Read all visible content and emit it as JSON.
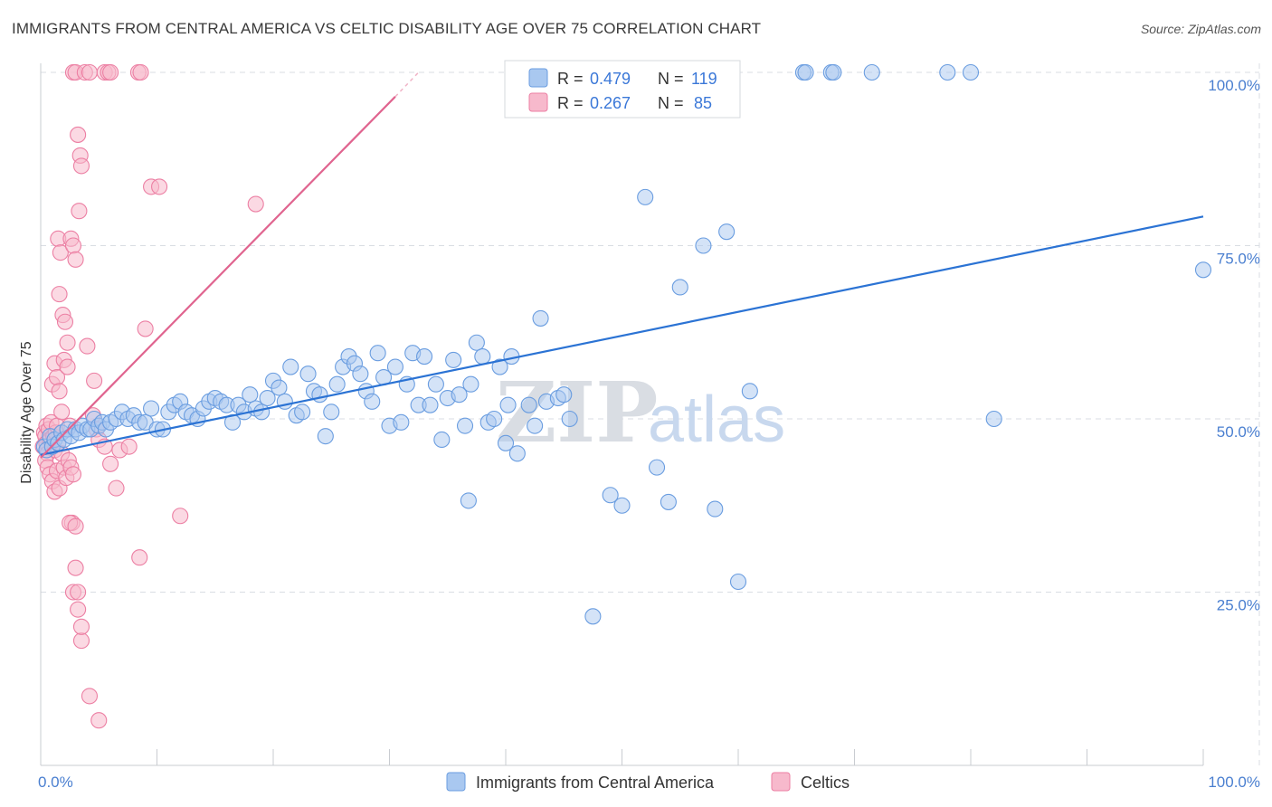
{
  "title": "IMMIGRANTS FROM CENTRAL AMERICA VS CELTIC DISABILITY AGE OVER 75 CORRELATION CHART",
  "source": "Source: ZipAtlas.com",
  "watermark": {
    "zip": "ZIP",
    "atlas": "atlas"
  },
  "colors": {
    "blue_fill": "#a9c8f0",
    "blue_stroke": "#6a9de0",
    "blue_line": "#2b73d4",
    "pink_fill": "#f7b9cc",
    "pink_stroke": "#ec7fa3",
    "pink_line": "#e0648f",
    "grid": "#d9dde3",
    "tick_text": "#4a7fd0"
  },
  "legend": {
    "blue": {
      "r_label": "R = ",
      "r_value": "0.479",
      "n_label": "N = ",
      "n_value": "119"
    },
    "pink": {
      "r_label": "R = ",
      "r_value": "0.267",
      "n_label": "N = ",
      "n_value": "85"
    }
  },
  "chart_data": {
    "type": "scatter",
    "title": "IMMIGRANTS FROM CENTRAL AMERICA VS CELTIC DISABILITY AGE OVER 75 CORRELATION CHART",
    "xlabel": "",
    "ylabel": "Disability Age Over 75",
    "xlim": [
      0,
      100
    ],
    "ylim": [
      0,
      103
    ],
    "x_tick_labels": [
      "0.0%",
      "100.0%"
    ],
    "y_ticks": [
      25,
      50,
      75,
      100
    ],
    "y_tick_labels": [
      "25.0%",
      "50.0%",
      "75.0%",
      "100.0%"
    ],
    "grid": true,
    "legend_position": "top-center",
    "series": [
      {
        "name": "Immigrants from Central America",
        "color": "#6a9de0",
        "trend": {
          "x": [
            0,
            100
          ],
          "y": [
            44.8,
            79.2
          ]
        },
        "points": [
          [
            0.3,
            46
          ],
          [
            0.5,
            45.5
          ],
          [
            0.8,
            47.5
          ],
          [
            1.0,
            46
          ],
          [
            1.2,
            47
          ],
          [
            1.5,
            46.5
          ],
          [
            1.8,
            48
          ],
          [
            2.0,
            47
          ],
          [
            2.3,
            48.5
          ],
          [
            2.6,
            47.5
          ],
          [
            3.0,
            48.5
          ],
          [
            3.3,
            48
          ],
          [
            3.6,
            49
          ],
          [
            4.0,
            48.5
          ],
          [
            4.3,
            48.5
          ],
          [
            4.6,
            50
          ],
          [
            5.0,
            49
          ],
          [
            5.3,
            49.5
          ],
          [
            5.6,
            48.5
          ],
          [
            6.0,
            49.5
          ],
          [
            6.5,
            50
          ],
          [
            7.0,
            51
          ],
          [
            7.5,
            50
          ],
          [
            8.0,
            50.5
          ],
          [
            8.5,
            49.5
          ],
          [
            9.0,
            49.5
          ],
          [
            9.5,
            51.5
          ],
          [
            10.0,
            48.5
          ],
          [
            10.5,
            48.5
          ],
          [
            11.0,
            51
          ],
          [
            11.5,
            52
          ],
          [
            12.0,
            52.5
          ],
          [
            12.5,
            51
          ],
          [
            13.0,
            50.5
          ],
          [
            13.5,
            50
          ],
          [
            14.0,
            51.5
          ],
          [
            14.5,
            52.5
          ],
          [
            15.0,
            53
          ],
          [
            15.5,
            52.5
          ],
          [
            16.0,
            52
          ],
          [
            16.5,
            49.5
          ],
          [
            17.0,
            52
          ],
          [
            17.5,
            51
          ],
          [
            18.0,
            53.5
          ],
          [
            18.5,
            51.5
          ],
          [
            19.0,
            51
          ],
          [
            19.5,
            53
          ],
          [
            20.0,
            55.5
          ],
          [
            20.5,
            54.5
          ],
          [
            21.0,
            52.5
          ],
          [
            21.5,
            57.5
          ],
          [
            22.0,
            50.5
          ],
          [
            22.5,
            51
          ],
          [
            23.0,
            56.5
          ],
          [
            23.5,
            54
          ],
          [
            24.0,
            53.5
          ],
          [
            24.5,
            47.5
          ],
          [
            25.0,
            51
          ],
          [
            25.5,
            55
          ],
          [
            26.0,
            57.5
          ],
          [
            26.5,
            59
          ],
          [
            27.0,
            58
          ],
          [
            27.5,
            56.5
          ],
          [
            28.0,
            54
          ],
          [
            28.5,
            52.5
          ],
          [
            29.0,
            59.5
          ],
          [
            29.5,
            56
          ],
          [
            30.0,
            49
          ],
          [
            30.5,
            57.5
          ],
          [
            31.0,
            49.5
          ],
          [
            31.5,
            55
          ],
          [
            32.0,
            59.5
          ],
          [
            32.5,
            52
          ],
          [
            33.0,
            59
          ],
          [
            33.5,
            52
          ],
          [
            34.0,
            55
          ],
          [
            34.5,
            47
          ],
          [
            35.0,
            53
          ],
          [
            35.5,
            58.5
          ],
          [
            36.0,
            53.5
          ],
          [
            36.5,
            49
          ],
          [
            37.0,
            55
          ],
          [
            37.5,
            61
          ],
          [
            38.0,
            59
          ],
          [
            38.5,
            49.5
          ],
          [
            39.0,
            50
          ],
          [
            39.5,
            57.5
          ],
          [
            40.0,
            46.5
          ],
          [
            40.5,
            59
          ],
          [
            41.0,
            45
          ],
          [
            42.0,
            52
          ],
          [
            42.5,
            49
          ],
          [
            43.0,
            64.5
          ],
          [
            43.5,
            52.5
          ],
          [
            44.5,
            53
          ],
          [
            45.0,
            53.5
          ],
          [
            45.5,
            50
          ],
          [
            40.2,
            52
          ],
          [
            36.8,
            38.2
          ],
          [
            54,
            38
          ],
          [
            52,
            82
          ],
          [
            55,
            69
          ],
          [
            57,
            75
          ],
          [
            59,
            77
          ],
          [
            58,
            37
          ],
          [
            60,
            26.5
          ],
          [
            61,
            54
          ],
          [
            49,
            39
          ],
          [
            50,
            37.5
          ],
          [
            53,
            43
          ],
          [
            47.5,
            21.5
          ],
          [
            65.6,
            100
          ],
          [
            65.8,
            100
          ],
          [
            68,
            100
          ],
          [
            68.2,
            100
          ],
          [
            71.5,
            100
          ],
          [
            78,
            100
          ],
          [
            80,
            100
          ],
          [
            82,
            50
          ],
          [
            100,
            71.5
          ]
        ]
      },
      {
        "name": "Celtics",
        "color": "#ec7fa3",
        "trend": {
          "x": [
            0,
            30.5
          ],
          "y": [
            44.4,
            96.5
          ],
          "dashed_x": [
            30.5,
            32.5
          ],
          "dashed_y": [
            96.5,
            100
          ]
        },
        "points": [
          [
            0.2,
            46
          ],
          [
            0.3,
            48
          ],
          [
            0.4,
            47.5
          ],
          [
            0.5,
            49
          ],
          [
            0.5,
            46.5
          ],
          [
            0.6,
            45
          ],
          [
            0.7,
            48.5
          ],
          [
            0.8,
            47
          ],
          [
            0.9,
            49.5
          ],
          [
            1.0,
            46
          ],
          [
            1.1,
            47.5
          ],
          [
            1.2,
            45.5
          ],
          [
            1.3,
            48
          ],
          [
            1.4,
            49
          ],
          [
            1.5,
            46.5
          ],
          [
            0.4,
            44
          ],
          [
            0.6,
            43
          ],
          [
            0.8,
            42
          ],
          [
            1.0,
            41
          ],
          [
            1.2,
            39.5
          ],
          [
            1.4,
            42.5
          ],
          [
            1.6,
            40
          ],
          [
            1.8,
            45
          ],
          [
            2.0,
            43
          ],
          [
            2.2,
            41.5
          ],
          [
            2.4,
            44
          ],
          [
            2.6,
            43
          ],
          [
            2.8,
            42
          ],
          [
            1.0,
            55
          ],
          [
            1.2,
            58
          ],
          [
            1.4,
            56
          ],
          [
            1.6,
            54
          ],
          [
            1.8,
            51
          ],
          [
            2.0,
            58.5
          ],
          [
            2.3,
            57.5
          ],
          [
            2.5,
            49
          ],
          [
            2.7,
            35
          ],
          [
            3.0,
            28.5
          ],
          [
            3.2,
            22.5
          ],
          [
            3.5,
            18
          ],
          [
            1.5,
            76
          ],
          [
            1.7,
            74
          ],
          [
            1.9,
            65
          ],
          [
            2.1,
            64
          ],
          [
            2.3,
            61
          ],
          [
            1.6,
            68
          ],
          [
            2.6,
            76
          ],
          [
            2.8,
            75
          ],
          [
            3.0,
            73
          ],
          [
            3.3,
            80
          ],
          [
            3.2,
            91
          ],
          [
            3.4,
            88
          ],
          [
            3.5,
            86.5
          ],
          [
            2.8,
            100
          ],
          [
            3.0,
            100
          ],
          [
            3.8,
            100
          ],
          [
            4.2,
            100
          ],
          [
            5.5,
            100
          ],
          [
            5.8,
            100
          ],
          [
            6.0,
            100
          ],
          [
            8.4,
            100
          ],
          [
            8.6,
            100
          ],
          [
            9.5,
            83.5
          ],
          [
            10.2,
            83.5
          ],
          [
            9.0,
            63
          ],
          [
            18.5,
            81
          ],
          [
            4.5,
            50.5
          ],
          [
            4.8,
            48.5
          ],
          [
            5.0,
            47
          ],
          [
            5.5,
            46
          ],
          [
            6.0,
            43.5
          ],
          [
            6.5,
            40
          ],
          [
            2.5,
            35
          ],
          [
            3.0,
            34.5
          ],
          [
            2.8,
            25
          ],
          [
            3.2,
            25
          ],
          [
            3.5,
            20
          ],
          [
            4.2,
            10
          ],
          [
            5.0,
            6.5
          ],
          [
            12.0,
            36
          ],
          [
            8.5,
            30
          ],
          [
            6.8,
            45.5
          ],
          [
            4.0,
            60.5
          ],
          [
            4.6,
            55.5
          ],
          [
            7.6,
            46
          ]
        ]
      }
    ]
  },
  "bottom_legend": {
    "blue_label": "Immigrants from Central America",
    "pink_label": "Celtics"
  }
}
